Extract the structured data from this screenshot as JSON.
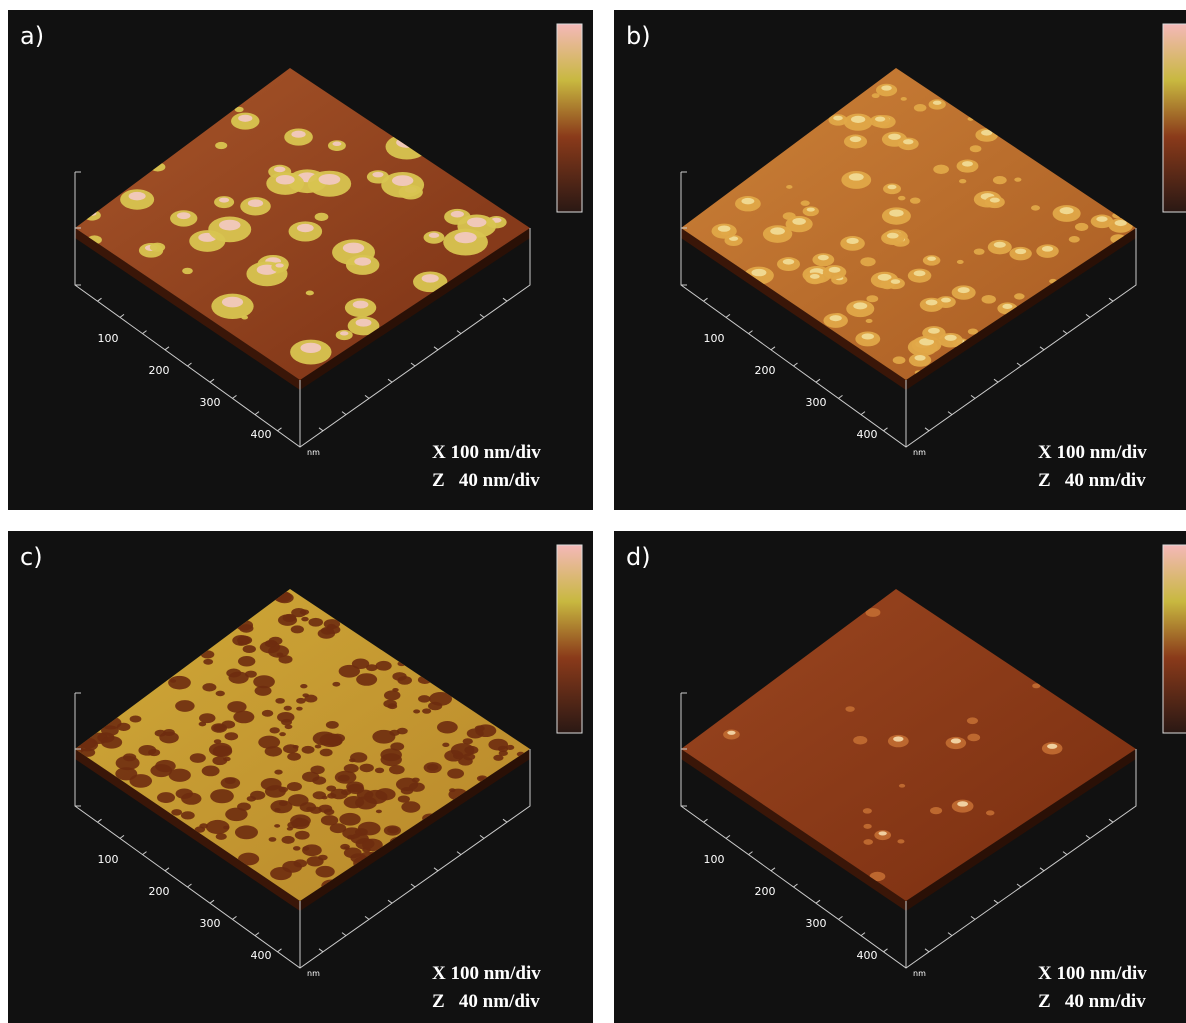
{
  "panels": [
    {
      "label": "a)",
      "ticks": [
        "100",
        "200",
        "300",
        "400"
      ],
      "unit": "nm",
      "scale": [
        "X 100 nm/div",
        "Z   40 nm/div"
      ]
    },
    {
      "label": "b)",
      "ticks": [
        "100",
        "200",
        "300",
        "400"
      ],
      "unit": "nm",
      "scale": [
        "X 100 nm/div",
        "Z   40 nm/div"
      ]
    },
    {
      "label": "c)",
      "ticks": [
        "100",
        "200",
        "300",
        "400"
      ],
      "unit": "nm",
      "scale": [
        "X 100 nm/div",
        "Z   40 nm/div"
      ]
    },
    {
      "label": "d)",
      "ticks": [
        "100",
        "200",
        "300",
        "400"
      ],
      "unit": "nm",
      "scale": [
        "X 100 nm/div",
        "Z   40 nm/div"
      ]
    }
  ]
}
